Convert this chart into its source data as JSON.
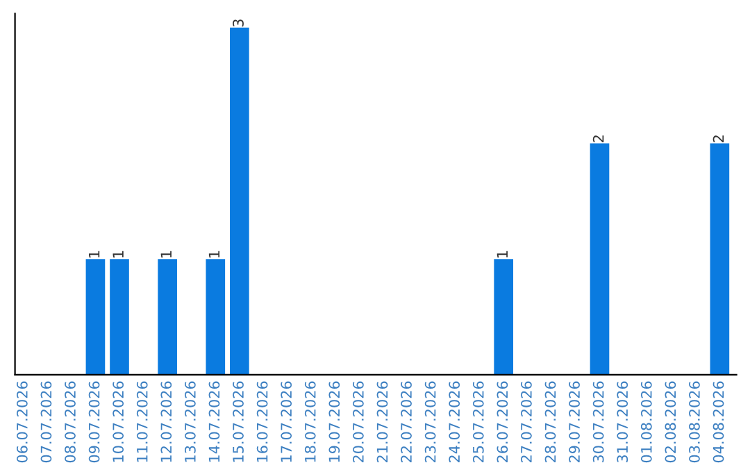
{
  "chart_data": {
    "type": "bar",
    "categories": [
      "06.07.2026",
      "07.07.2026",
      "08.07.2026",
      "09.07.2026",
      "10.07.2026",
      "11.07.2026",
      "12.07.2026",
      "13.07.2026",
      "14.07.2026",
      "15.07.2026",
      "16.07.2026",
      "17.07.2026",
      "18.07.2026",
      "19.07.2026",
      "20.07.2026",
      "21.07.2026",
      "22.07.2026",
      "23.07.2026",
      "24.07.2026",
      "25.07.2026",
      "26.07.2026",
      "27.07.2026",
      "28.07.2026",
      "29.07.2026",
      "30.07.2026",
      "31.07.2026",
      "01.08.2026",
      "02.08.2026",
      "03.08.2026",
      "04.08.2026"
    ],
    "values": [
      0,
      0,
      0,
      1,
      1,
      0,
      1,
      0,
      1,
      3,
      0,
      0,
      0,
      0,
      0,
      0,
      0,
      0,
      0,
      0,
      1,
      0,
      0,
      0,
      2,
      0,
      0,
      0,
      0,
      2
    ],
    "value_labels": [
      null,
      null,
      null,
      "1",
      "1",
      null,
      "1",
      null,
      "1",
      "3",
      null,
      null,
      null,
      null,
      null,
      null,
      null,
      null,
      null,
      null,
      "1",
      null,
      null,
      null,
      "2",
      null,
      null,
      null,
      null,
      "2"
    ],
    "color": "#0a7be0",
    "grid": false,
    "legend": false,
    "tick_labels": "x"
  }
}
